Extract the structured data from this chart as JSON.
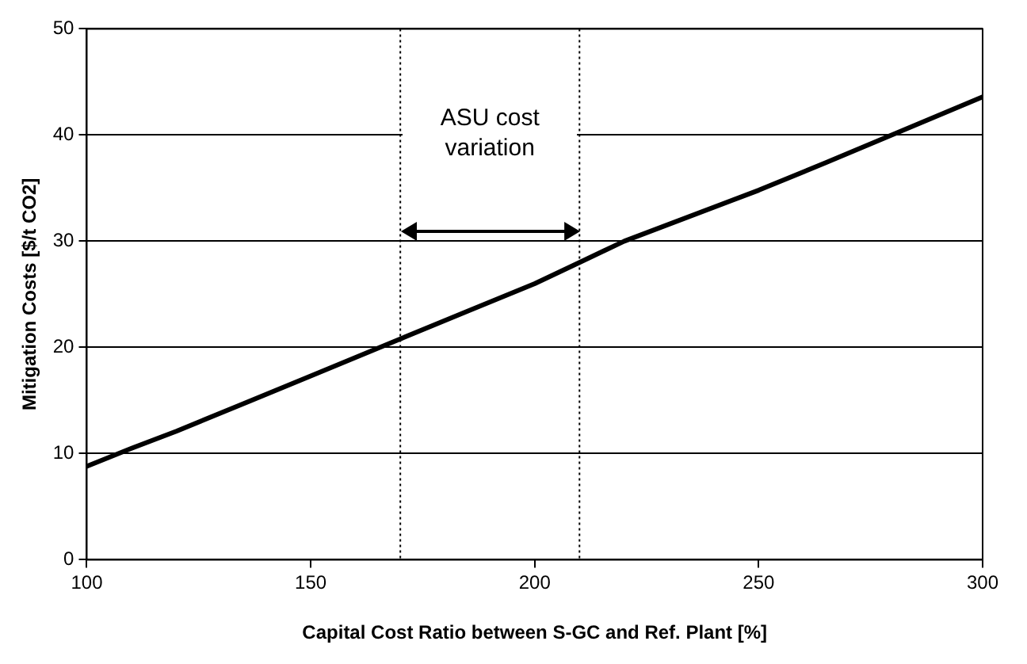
{
  "chart_data": {
    "type": "line",
    "xlabel": "Capital Cost Ratio between S-GC and Ref. Plant [%]",
    "ylabel": "Mitigation Costs [$/t CO2]",
    "x": [
      100,
      110,
      120,
      150,
      170,
      185,
      200,
      210,
      220,
      250,
      265,
      300
    ],
    "series": [
      {
        "color": "#000000",
        "values": [
          8.8,
          10.5,
          12.1,
          17.3,
          20.8,
          23.4,
          26,
          28,
          30,
          34.8,
          37.4,
          43.6
        ]
      }
    ],
    "xlim": [
      100,
      300
    ],
    "xticks": [
      100,
      150,
      200,
      250,
      300
    ],
    "ylim": [
      0,
      50
    ],
    "yticks": [
      0,
      10,
      20,
      30,
      40,
      50
    ],
    "grid": "y",
    "legend": false,
    "marker": "none",
    "line_style": "solid",
    "ref_lines": [
      {
        "axis": "x",
        "value": 170,
        "line_style": "dotted"
      },
      {
        "axis": "x",
        "value": 210,
        "line_style": "dotted"
      }
    ],
    "annotations": [
      "ASU cost variation"
    ]
  }
}
